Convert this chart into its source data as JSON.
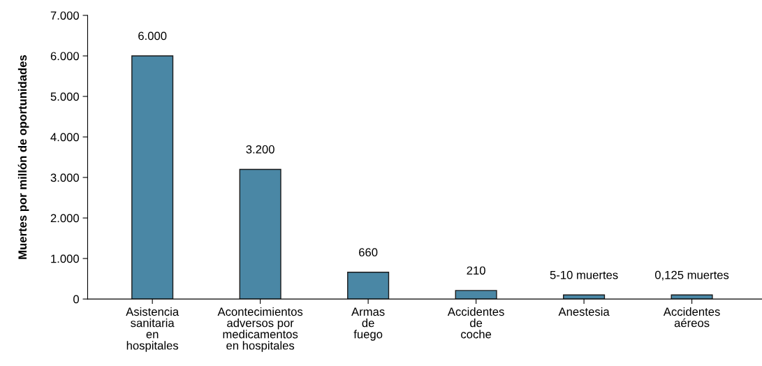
{
  "chart_data": {
    "type": "bar",
    "ylabel": "Muertes por millón de oportunidades",
    "categories": [
      "Asistencia\nsanitaria\nen\nhospitales",
      "Acontecimientos\nadversos por\nmedicamentos\nen hospitales",
      "Armas\nde\nfuego",
      "Accidentes\nde\ncoche",
      "Anestesia",
      "Accidentes\naéreos"
    ],
    "values": [
      6000,
      3200,
      660,
      210,
      100,
      100
    ],
    "value_labels": [
      "6.000",
      "3.200",
      "660",
      "210",
      null,
      null
    ],
    "annotations": [
      {
        "text": "5-10 muertes",
        "x": "Anestesia",
        "y": 100
      },
      {
        "text": "0,125 muertes",
        "x": "Accidentes\naéreos",
        "y": 100
      }
    ],
    "color": "#4a87a5",
    "ylim": [
      0,
      7000
    ],
    "yticks": [
      {
        "value": 0,
        "label": "0"
      },
      {
        "value": 1000,
        "label": "1.000"
      },
      {
        "value": 2000,
        "label": "2.000"
      },
      {
        "value": 3000,
        "label": "3.000"
      },
      {
        "value": 4000,
        "label": "4.000"
      },
      {
        "value": 5000,
        "label": "5.000"
      },
      {
        "value": 6000,
        "label": "6.000"
      },
      {
        "value": 7000,
        "label": "7.000"
      }
    ],
    "grid": false,
    "legend": false
  }
}
